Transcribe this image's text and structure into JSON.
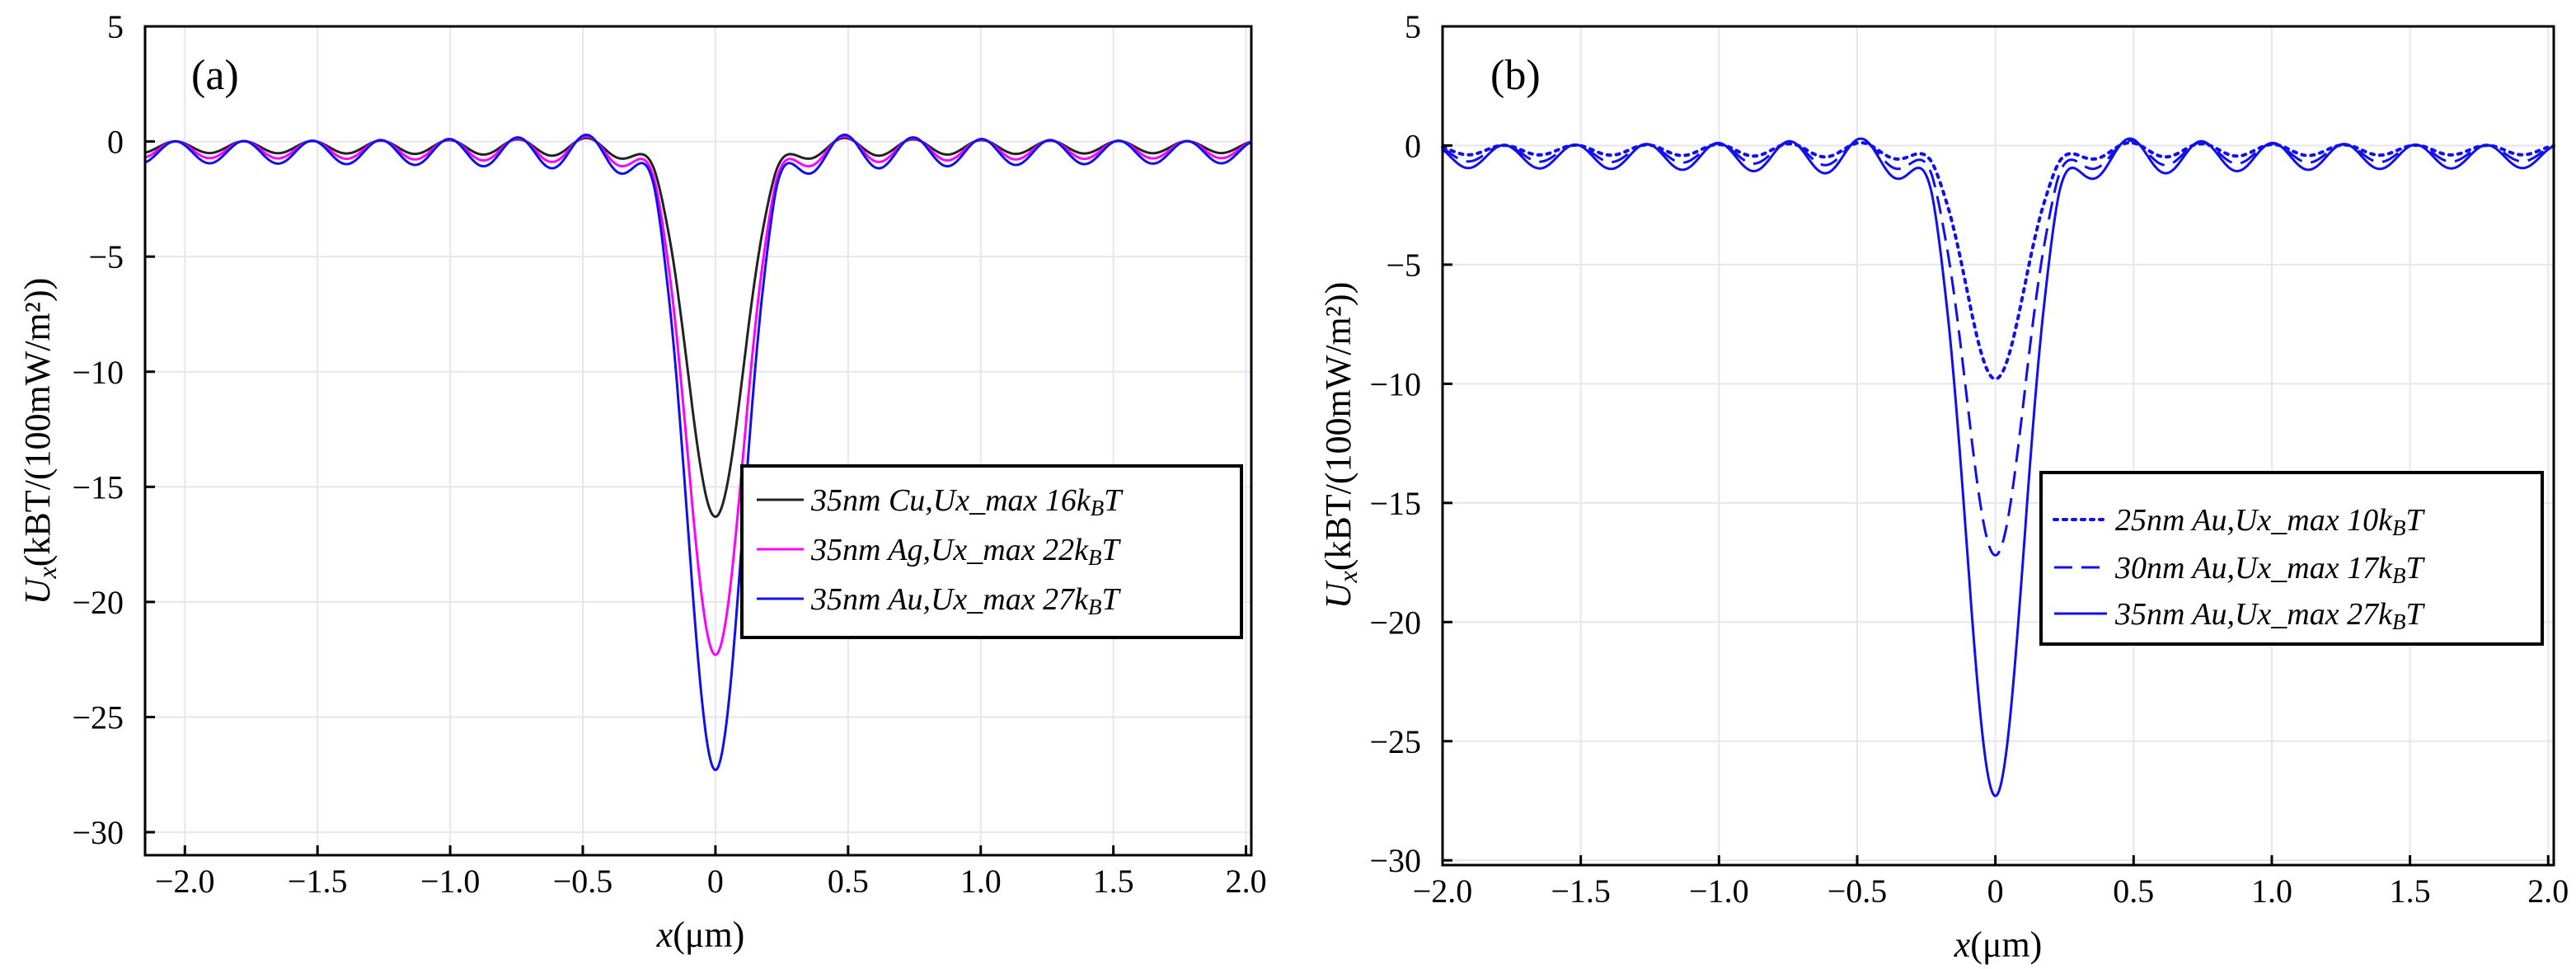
{
  "chart_data": [
    {
      "type": "line",
      "panel_label": "(a)",
      "xlabel_var": "x",
      "xlabel_unit": "(μm)",
      "ylabel_var": "U",
      "ylabel_sub": "x",
      "ylabel_unit": "(kBT/(100mW/m²))",
      "xlim": [
        -2.15,
        2.02
      ],
      "ylim": [
        -31,
        5
      ],
      "xticks": [
        -2.0,
        -1.5,
        -1.0,
        -0.5,
        0,
        0.5,
        1.0,
        1.5,
        2.0
      ],
      "xtick_labels": [
        "−2.0",
        "−1.5",
        "−1.0",
        "−0.5",
        "0",
        "0.5",
        "1.0",
        "1.5",
        "2.0"
      ],
      "yticks": [
        5,
        0,
        -5,
        -10,
        -15,
        -20,
        -25,
        -30
      ],
      "ytick_labels": [
        "5",
        "0",
        "−5",
        "−10",
        "−15",
        "−20",
        "−25",
        "−30"
      ],
      "grid": true,
      "legend_position": "center-right",
      "series": [
        {
          "name": "35nm Cu,Ux_max 16kBT",
          "label_main": "35nm Cu,Ux_max 16k",
          "label_sub": "B",
          "label_end": "T",
          "color": "#222222",
          "dash": "solid",
          "peak": -16.3,
          "ripple": 0.45
        },
        {
          "name": "35nm Ag,Ux_max 22kBT",
          "label_main": "35nm Ag,Ux_max 22k",
          "label_sub": "B",
          "label_end": "T",
          "color": "#ff00ff",
          "dash": "solid",
          "peak": -22.3,
          "ripple": 0.65
        },
        {
          "name": "35nm Au,Ux_max 27kBT",
          "label_main": "35nm Au,Ux_max 27k",
          "label_sub": "B",
          "label_end": "T",
          "color": "#1010ee",
          "dash": "solid",
          "peak": -27.3,
          "ripple": 0.85
        }
      ]
    },
    {
      "type": "line",
      "panel_label": "(b)",
      "xlabel_var": "x",
      "xlabel_unit": "(μm)",
      "ylabel_var": "U",
      "ylabel_sub": "x",
      "ylabel_unit": "(kBT/(100mW/m²))",
      "xlim": [
        -2.0,
        2.02
      ],
      "ylim": [
        -30.2,
        5
      ],
      "xticks": [
        -2.0,
        -1.5,
        -1.0,
        -0.5,
        0,
        0.5,
        1.0,
        1.5,
        2.0
      ],
      "xtick_labels": [
        "−2.0",
        "−1.5",
        "−1.0",
        "−0.5",
        "0",
        "0.5",
        "1.0",
        "1.5",
        "2.0"
      ],
      "yticks": [
        5,
        0,
        -5,
        -10,
        -15,
        -20,
        -25,
        -30
      ],
      "ytick_labels": [
        "5",
        "0",
        "−5",
        "−10",
        "−15",
        "−20",
        "−25",
        "−30"
      ],
      "grid": true,
      "legend_position": "center-right",
      "series": [
        {
          "name": "25nm Au,Ux_max 10kBT",
          "label_main": "25nm Au,Ux_max 10k",
          "label_sub": "B",
          "label_end": "T",
          "color": "#1010ee",
          "dash": "dotted",
          "peak": -9.8,
          "ripple": 0.35
        },
        {
          "name": "30nm Au,Ux_max 17kBT",
          "label_main": "30nm Au,Ux_max 17k",
          "label_sub": "B",
          "label_end": "T",
          "color": "#1010ee",
          "dash": "dashed",
          "peak": -17.2,
          "ripple": 0.6
        },
        {
          "name": "35nm Au,Ux_max 27kBT",
          "label_main": "35nm Au,Ux_max 27k",
          "label_sub": "B",
          "label_end": "T",
          "color": "#1010ee",
          "dash": "solid",
          "peak": -27.3,
          "ripple": 0.85
        }
      ]
    }
  ]
}
